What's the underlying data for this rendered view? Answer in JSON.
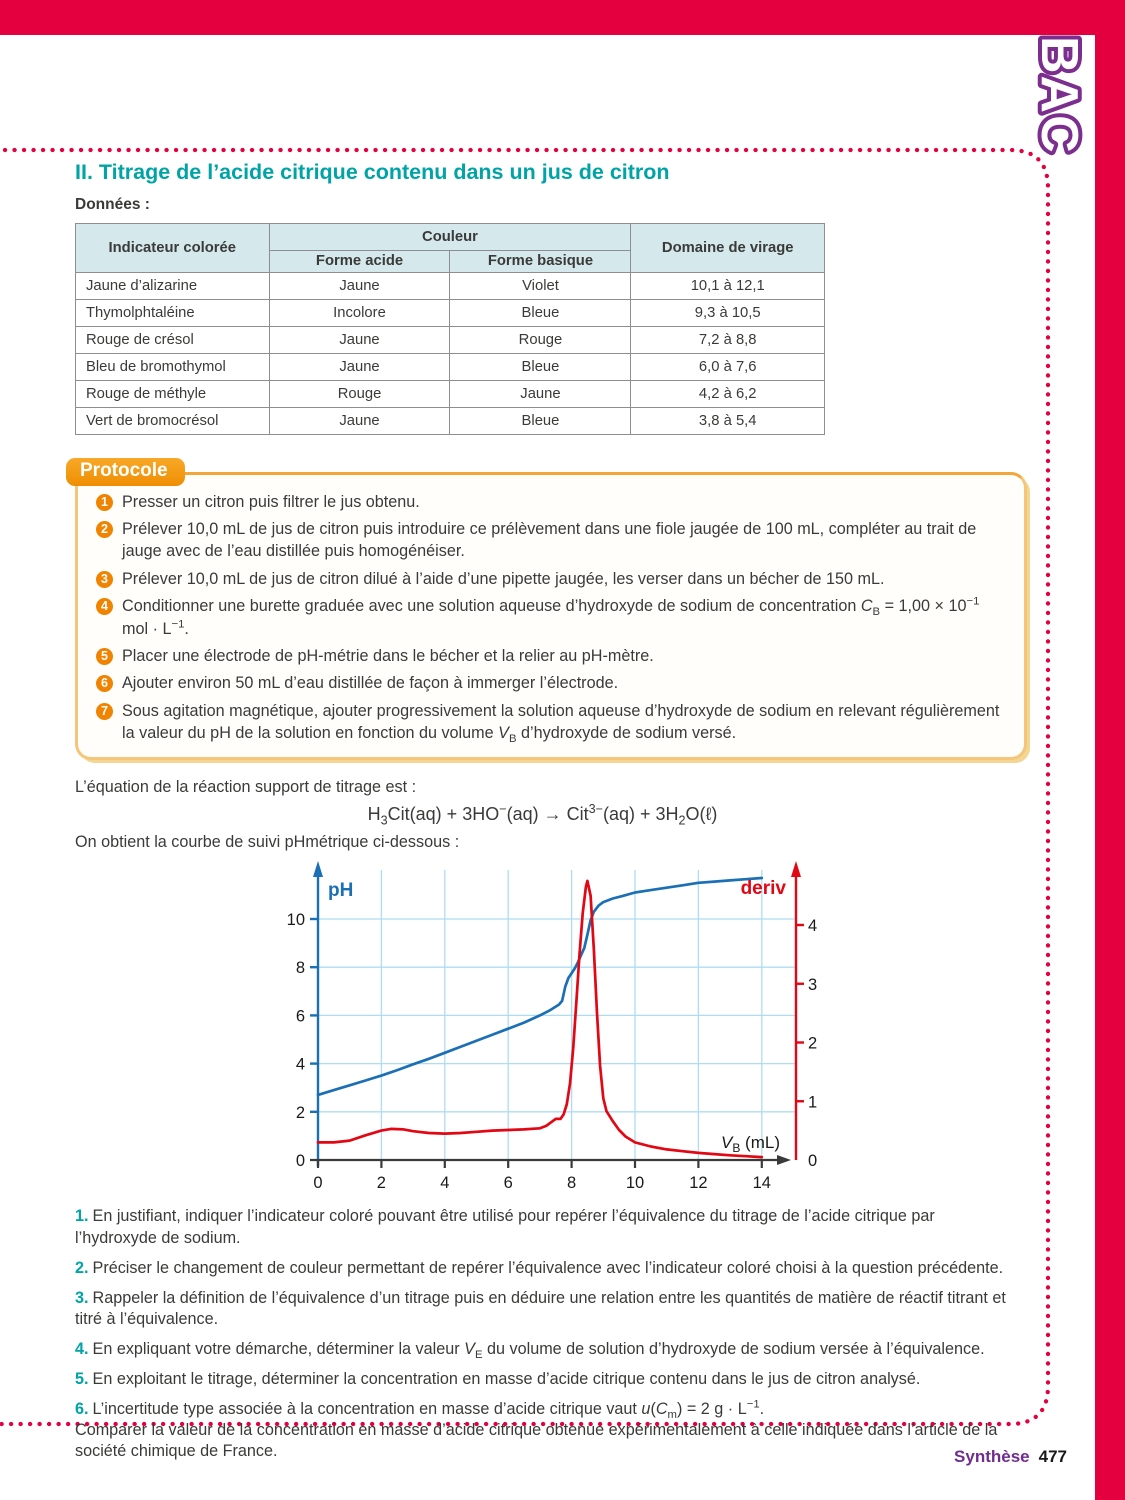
{
  "page": {
    "bac_label": "BAC",
    "footer": {
      "section": "Synthèse",
      "page_number": "477"
    }
  },
  "colors": {
    "band_red": "#e4003f",
    "title_teal": "#00a3a6",
    "protocole_orange": "#f08300",
    "bac_purple": "#7b2e8e",
    "footer_purple": "#6f2c91",
    "table_header_bg": "#d5e9ec"
  },
  "title": "II. Titrage de l’acide citrique contenu dans un jus de citron",
  "donnees_label": "Données :",
  "table": {
    "col_indicateur": "Indicateur colorée",
    "col_couleur": "Couleur",
    "col_forme_acide": "Forme acide",
    "col_forme_basique": "Forme basique",
    "col_domaine": "Domaine de virage",
    "rows": [
      {
        "indicateur": "Jaune d’alizarine",
        "acide": "Jaune",
        "basique": "Violet",
        "virage": "10,1 à 12,1"
      },
      {
        "indicateur": "Thymolphtaléine",
        "acide": "Incolore",
        "basique": "Bleue",
        "virage": "9,3 à 10,5"
      },
      {
        "indicateur": "Rouge de crésol",
        "acide": "Jaune",
        "basique": "Rouge",
        "virage": "7,2 à 8,8"
      },
      {
        "indicateur": "Bleu de bromothymol",
        "acide": "Jaune",
        "basique": "Bleue",
        "virage": "6,0 à 7,6"
      },
      {
        "indicateur": "Rouge de méthyle",
        "acide": "Rouge",
        "basique": "Jaune",
        "virage": "4,2 à 6,2"
      },
      {
        "indicateur": "Vert de bromocrésol",
        "acide": "Jaune",
        "basique": "Bleue",
        "virage": "3,8 à 5,4"
      }
    ]
  },
  "protocole": {
    "tab_label": "Protocole",
    "steps": [
      {
        "num": "1",
        "html": "Presser un citron puis filtrer le jus obtenu."
      },
      {
        "num": "2",
        "html": "Prélever 10,0 mL de jus de citron puis introduire ce prélèvement dans une fiole jaugée de 100 mL, compléter au trait de jauge avec de l’eau distillée puis homogénéiser."
      },
      {
        "num": "3",
        "html": "Prélever 10,0 mL de jus de citron dilué à l’aide d’une pipette jaugée, les verser dans un bécher de 150 mL."
      },
      {
        "num": "4",
        "html": "Conditionner une burette graduée avec une solution aqueuse d’hydroxyde de sodium de concentration <i>C</i><sub>B</sub> = 1,00 × 10<sup>−1</sup> mol · L<sup>−1</sup>."
      },
      {
        "num": "5",
        "html": "Placer une électrode de pH-métrie dans le bécher et la relier au pH-mètre."
      },
      {
        "num": "6",
        "html": "Ajouter environ 50 mL d’eau distillée de façon à immerger l’électrode."
      },
      {
        "num": "7",
        "html": "Sous agitation magnétique, ajouter progressivement la solution aqueuse d’hydroxyde de sodium en relevant régulièrement la valeur du pH de la solution en fonction du volume <i>V</i><sub>B</sub> d’hydroxyde de sodium versé."
      }
    ]
  },
  "equation": {
    "intro": "L’équation de la réaction support de titrage est :",
    "formula_html": "H<sub>3</sub>Cit(aq) + 3HO<sup>−</sup>(aq) → Cit<sup>3−</sup>(aq) + 3H<sub>2</sub>O(ℓ)",
    "outro": "On obtient la courbe de suivi pHmétrique ci-dessous :"
  },
  "chart_data": {
    "type": "line",
    "title": "",
    "left_axis_label": "pH",
    "right_axis_label": "deriv",
    "xlabel_var": "V",
    "xlabel_sub": "B",
    "xlabel_unit": " (mL)",
    "x_ticks": [
      0,
      2,
      4,
      6,
      8,
      10,
      12,
      14
    ],
    "left_ticks": [
      0,
      2,
      4,
      6,
      8,
      10
    ],
    "right_ticks": [
      0,
      1,
      2,
      3,
      4
    ],
    "xlim": [
      0,
      15
    ],
    "left_ylim": [
      0,
      12.2
    ],
    "right_ylim": [
      0,
      5
    ],
    "grid": true,
    "grid_color": "#aedcf4",
    "x_axis_color": "#3a3a38",
    "equivalence_volume_mL": 8.5,
    "series": [
      {
        "name": "pH",
        "axis": "left",
        "color": "#1b6fb5",
        "points": [
          [
            0,
            2.7
          ],
          [
            0.5,
            2.9
          ],
          [
            1,
            3.1
          ],
          [
            1.5,
            3.3
          ],
          [
            2,
            3.5
          ],
          [
            2.5,
            3.73
          ],
          [
            3,
            3.97
          ],
          [
            3.5,
            4.2
          ],
          [
            4,
            4.45
          ],
          [
            4.5,
            4.7
          ],
          [
            5,
            4.95
          ],
          [
            5.5,
            5.2
          ],
          [
            6,
            5.45
          ],
          [
            6.5,
            5.7
          ],
          [
            7,
            6.0
          ],
          [
            7.3,
            6.2
          ],
          [
            7.6,
            6.45
          ],
          [
            7.7,
            6.6
          ],
          [
            7.8,
            7.2
          ],
          [
            7.9,
            7.55
          ],
          [
            8,
            7.75
          ],
          [
            8.1,
            7.95
          ],
          [
            8.2,
            8.2
          ],
          [
            8.3,
            8.5
          ],
          [
            8.4,
            8.8
          ],
          [
            8.5,
            9.35
          ],
          [
            8.6,
            9.95
          ],
          [
            8.7,
            10.3
          ],
          [
            8.85,
            10.55
          ],
          [
            9,
            10.7
          ],
          [
            9.3,
            10.85
          ],
          [
            9.6,
            10.95
          ],
          [
            10,
            11.1
          ],
          [
            10.5,
            11.2
          ],
          [
            11,
            11.3
          ],
          [
            11.5,
            11.4
          ],
          [
            12,
            11.5
          ],
          [
            12.5,
            11.55
          ],
          [
            13,
            11.6
          ],
          [
            13.5,
            11.65
          ],
          [
            14,
            11.7
          ]
        ]
      },
      {
        "name": "deriv",
        "axis": "right",
        "color": "#e30613",
        "points": [
          [
            0,
            0.3
          ],
          [
            0.5,
            0.3
          ],
          [
            1,
            0.33
          ],
          [
            1.5,
            0.42
          ],
          [
            2,
            0.5
          ],
          [
            2.3,
            0.53
          ],
          [
            2.7,
            0.52
          ],
          [
            3,
            0.49
          ],
          [
            3.5,
            0.46
          ],
          [
            4,
            0.45
          ],
          [
            4.5,
            0.46
          ],
          [
            5,
            0.48
          ],
          [
            5.5,
            0.5
          ],
          [
            6,
            0.51
          ],
          [
            6.5,
            0.52
          ],
          [
            7,
            0.54
          ],
          [
            7.2,
            0.58
          ],
          [
            7.4,
            0.66
          ],
          [
            7.5,
            0.7
          ],
          [
            7.65,
            0.7
          ],
          [
            7.75,
            0.78
          ],
          [
            7.85,
            0.95
          ],
          [
            7.95,
            1.3
          ],
          [
            8.05,
            1.9
          ],
          [
            8.15,
            2.7
          ],
          [
            8.25,
            3.5
          ],
          [
            8.35,
            4.2
          ],
          [
            8.45,
            4.65
          ],
          [
            8.5,
            4.75
          ],
          [
            8.6,
            4.5
          ],
          [
            8.7,
            3.6
          ],
          [
            8.8,
            2.5
          ],
          [
            8.9,
            1.6
          ],
          [
            9,
            1.05
          ],
          [
            9.1,
            0.83
          ],
          [
            9.3,
            0.66
          ],
          [
            9.5,
            0.51
          ],
          [
            9.7,
            0.4
          ],
          [
            10,
            0.3
          ],
          [
            10.5,
            0.23
          ],
          [
            11,
            0.18
          ],
          [
            11.5,
            0.15
          ],
          [
            12,
            0.12
          ],
          [
            12.5,
            0.1
          ],
          [
            13,
            0.08
          ],
          [
            13.5,
            0.065
          ],
          [
            14,
            0.05
          ]
        ]
      }
    ]
  },
  "questions": [
    {
      "num": "1.",
      "html": "En justifiant, indiquer l’indicateur coloré pouvant être utilisé pour repérer l’équivalence du titrage de l’acide citrique par l’hydroxyde de sodium."
    },
    {
      "num": "2.",
      "html": "Préciser le changement de couleur permettant de repérer l’équivalence avec l’indicateur coloré choisi à la question précédente."
    },
    {
      "num": "3.",
      "html": "Rappeler la définition de l’équivalence d’un titrage puis en déduire une relation entre les quantités de matière de réactif titrant et titré à l’équivalence."
    },
    {
      "num": "4.",
      "html": "En expliquant votre démarche, déterminer la valeur <i>V</i><sub>E</sub> du volume de solution d’hydroxyde de sodium versée à l’équivalence."
    },
    {
      "num": "5.",
      "html": "En exploitant le titrage, déterminer la concentration en masse d’acide citrique contenu dans le jus de citron analysé."
    },
    {
      "num": "6.",
      "html": "L’incertitude type associée à la concentration en masse d’acide citrique vaut <i>u</i>(<i>C</i><sub>m</sub>) = 2 g · L<sup>−1</sup>.<br>Comparer la valeur de la concentration en masse d’acide citrique obtenue expérimentalement à celle indiquée dans l’article de la société chimique de France."
    }
  ]
}
